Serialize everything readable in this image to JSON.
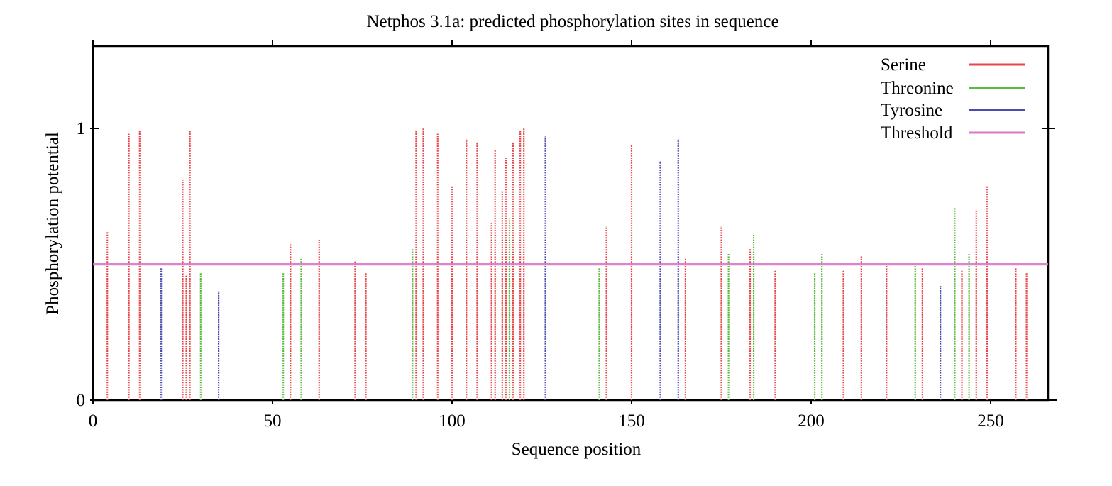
{
  "chart_data": {
    "type": "bar",
    "title": "Netphos 3.1a: predicted phosphorylation sites in sequence",
    "xlabel": "Sequence position",
    "ylabel": "Phosphorylation potential",
    "xlim": [
      0,
      265
    ],
    "ylim": [
      0,
      1.3
    ],
    "xticks": [
      0,
      50,
      100,
      150,
      200,
      250
    ],
    "yticks": [
      0,
      1
    ],
    "xtick_labels": [
      "0",
      "50",
      "100",
      "150",
      "200",
      "250"
    ],
    "ytick_labels": [
      "0",
      "1"
    ],
    "grid": false,
    "legend_position": "top-right",
    "threshold": 0.5,
    "series": [
      {
        "name": "Serine",
        "color": "#e8454a",
        "x": [
          4,
          10,
          13,
          25,
          26,
          27,
          55,
          63,
          73,
          76,
          90,
          92,
          96,
          100,
          104,
          107,
          111,
          112,
          114,
          115,
          117,
          119,
          120,
          143,
          150,
          165,
          175,
          183,
          190,
          209,
          214,
          221,
          231,
          242,
          246,
          249,
          257,
          260
        ],
        "y": [
          0.62,
          0.98,
          0.99,
          0.81,
          0.46,
          0.99,
          0.58,
          0.59,
          0.51,
          0.47,
          0.99,
          1.0,
          0.98,
          0.79,
          0.96,
          0.95,
          0.65,
          0.92,
          0.77,
          0.89,
          0.95,
          0.99,
          1.0,
          0.64,
          0.94,
          0.52,
          0.64,
          0.56,
          0.48,
          0.48,
          0.53,
          0.5,
          0.49,
          0.48,
          0.7,
          0.79,
          0.49,
          0.47
        ]
      },
      {
        "name": "Threonine",
        "color": "#5cb83f",
        "x": [
          30,
          53,
          58,
          89,
          116,
          141,
          177,
          184,
          201,
          203,
          229,
          240,
          244
        ],
        "y": [
          0.47,
          0.47,
          0.52,
          0.56,
          0.67,
          0.49,
          0.54,
          0.61,
          0.47,
          0.54,
          0.5,
          0.71,
          0.54
        ]
      },
      {
        "name": "Tyrosine",
        "color": "#4b4bb0",
        "x": [
          19,
          35,
          126,
          158,
          163,
          236
        ],
        "y": [
          0.49,
          0.4,
          0.97,
          0.88,
          0.96,
          0.42
        ]
      }
    ],
    "threshold_series": {
      "name": "Threshold",
      "color": "#d978c8"
    }
  }
}
